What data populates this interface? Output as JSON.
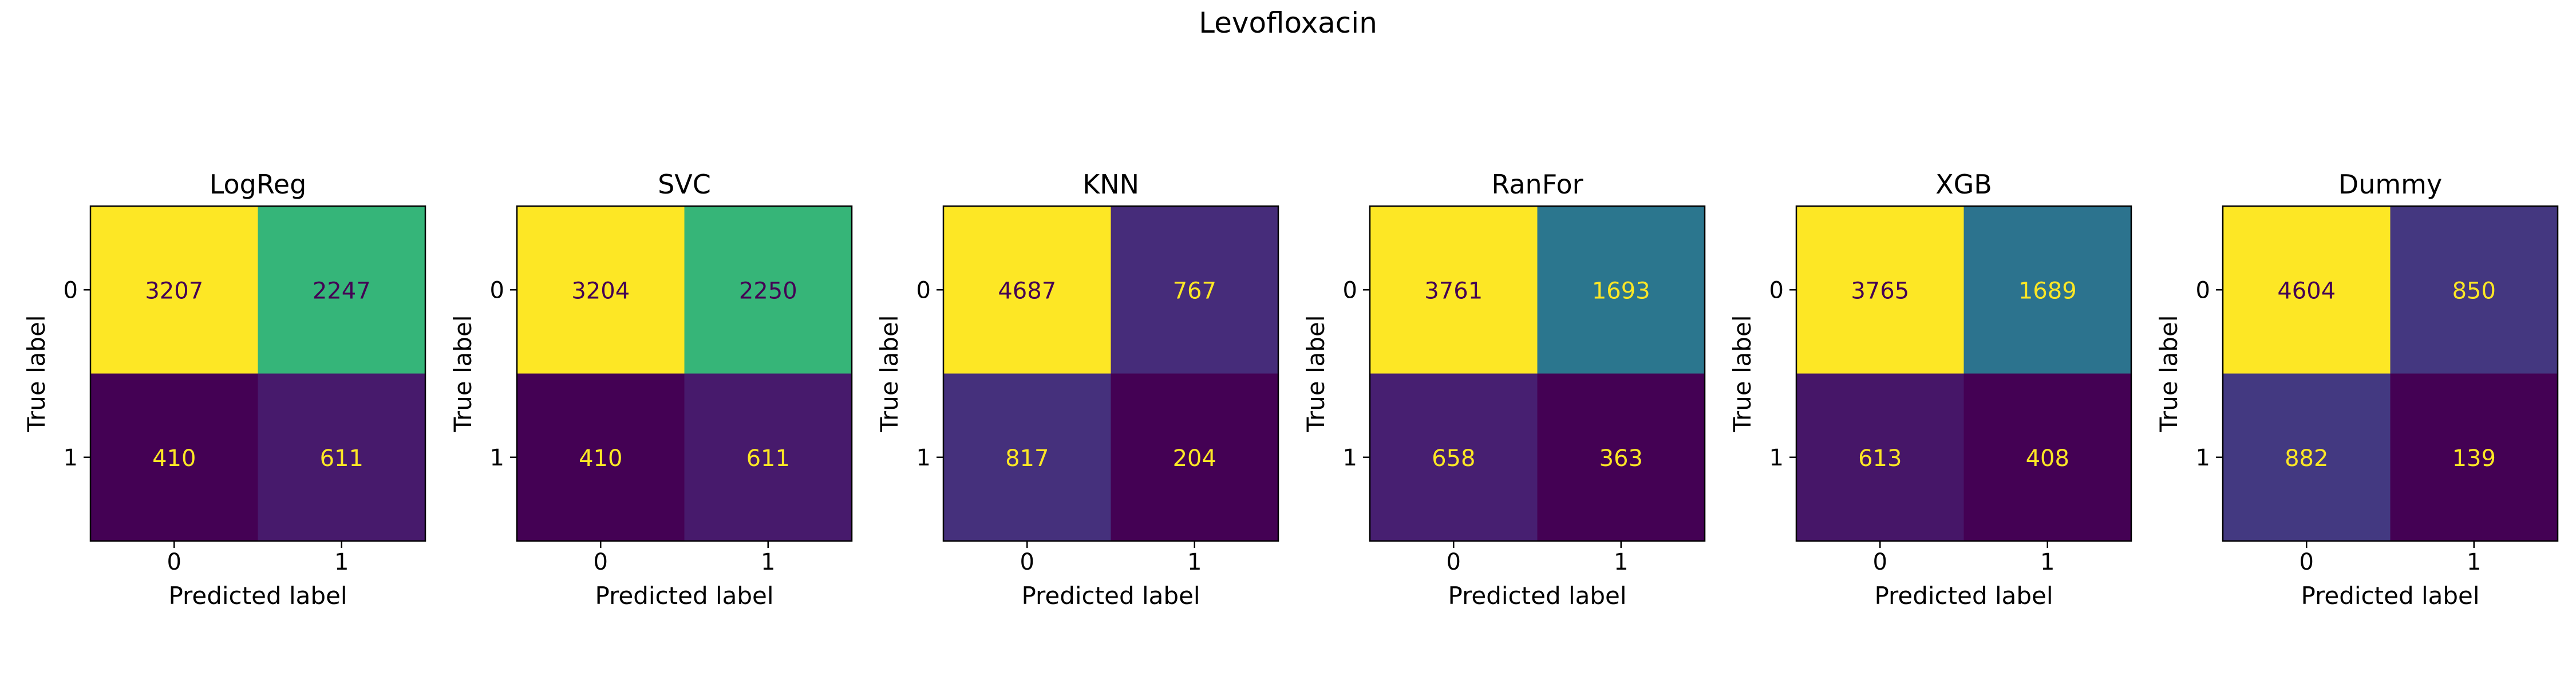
{
  "figure": {
    "title": "Levofloxacin"
  },
  "colors": {
    "colormap": "viridis",
    "text_on_dark": "#fde725",
    "text_on_light": "#440154",
    "axis_edge": "#000000"
  },
  "chart_data": [
    {
      "type": "heatmap",
      "title": "LogReg",
      "xlabel": "Predicted label",
      "ylabel": "True label",
      "x_categories": [
        "0",
        "1"
      ],
      "y_categories": [
        "0",
        "1"
      ],
      "matrix": [
        [
          3207,
          2247
        ],
        [
          410,
          611
        ]
      ]
    },
    {
      "type": "heatmap",
      "title": "SVC",
      "xlabel": "Predicted label",
      "ylabel": "True label",
      "x_categories": [
        "0",
        "1"
      ],
      "y_categories": [
        "0",
        "1"
      ],
      "matrix": [
        [
          3204,
          2250
        ],
        [
          410,
          611
        ]
      ]
    },
    {
      "type": "heatmap",
      "title": "KNN",
      "xlabel": "Predicted label",
      "ylabel": "True label",
      "x_categories": [
        "0",
        "1"
      ],
      "y_categories": [
        "0",
        "1"
      ],
      "matrix": [
        [
          4687,
          767
        ],
        [
          817,
          204
        ]
      ]
    },
    {
      "type": "heatmap",
      "title": "RanFor",
      "xlabel": "Predicted label",
      "ylabel": "True label",
      "x_categories": [
        "0",
        "1"
      ],
      "y_categories": [
        "0",
        "1"
      ],
      "matrix": [
        [
          3761,
          1693
        ],
        [
          658,
          363
        ]
      ]
    },
    {
      "type": "heatmap",
      "title": "XGB",
      "xlabel": "Predicted label",
      "ylabel": "True label",
      "x_categories": [
        "0",
        "1"
      ],
      "y_categories": [
        "0",
        "1"
      ],
      "matrix": [
        [
          3765,
          1689
        ],
        [
          613,
          408
        ]
      ]
    },
    {
      "type": "heatmap",
      "title": "Dummy",
      "xlabel": "Predicted label",
      "ylabel": "True label",
      "x_categories": [
        "0",
        "1"
      ],
      "y_categories": [
        "0",
        "1"
      ],
      "matrix": [
        [
          4604,
          850
        ],
        [
          882,
          139
        ]
      ]
    }
  ]
}
